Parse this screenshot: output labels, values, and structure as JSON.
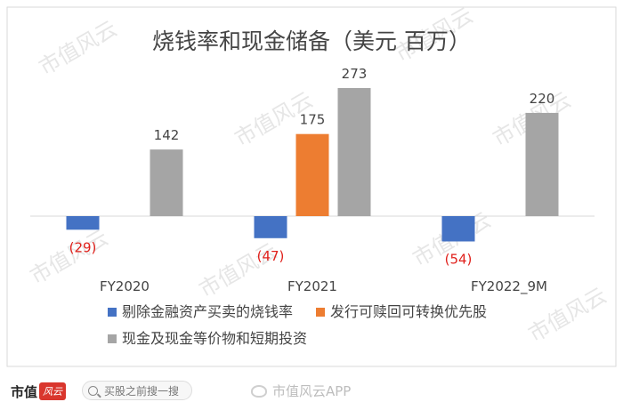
{
  "chart_data": {
    "type": "bar",
    "title": "烧钱率和现金储备（美元 百万）",
    "categories": [
      "FY2020",
      "FY2021",
      "FY2022_9M"
    ],
    "series": [
      {
        "name": "剔除金融资产买卖的烧钱率",
        "color": "#4472c4",
        "values": [
          -29,
          -47,
          -54
        ],
        "labels": [
          "(29)",
          "(47)",
          "(54)"
        ]
      },
      {
        "name": "发行可赎回可转换优先股",
        "color": "#ed7d31",
        "values": [
          null,
          175,
          null
        ],
        "labels": [
          "",
          "175",
          ""
        ]
      },
      {
        "name": "现金及现金等价物和短期投资",
        "color": "#a5a5a5",
        "values": [
          142,
          273,
          220
        ],
        "labels": [
          "142",
          "273",
          "220"
        ]
      }
    ],
    "legend_position": "bottom",
    "grid": false
  },
  "watermark": "市值风云",
  "footer": {
    "brand": "市值",
    "brand_badge": "风云",
    "search_placeholder": "买股之前搜一搜",
    "weibo_text": "市值风云APP"
  }
}
